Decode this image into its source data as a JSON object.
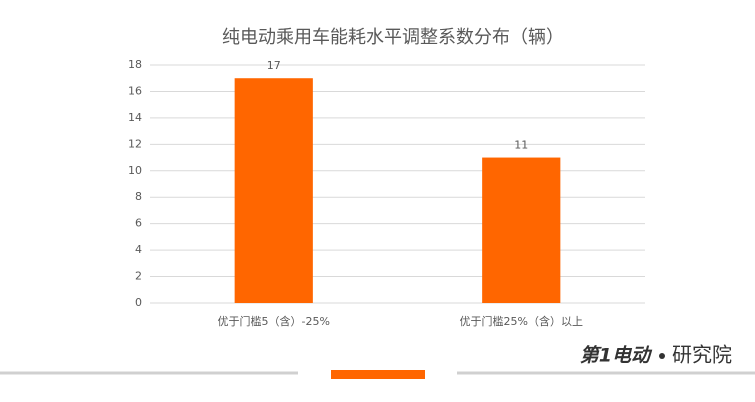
{
  "chart_data": {
    "type": "bar",
    "title": "纯电动乘用车能耗水平调整系数分布（辆）",
    "categories": [
      "优于门槛5（含）-25%",
      "优于门槛25%（含）以上"
    ],
    "values": [
      17,
      11
    ],
    "color": "#ff6600",
    "ylim": [
      0,
      18
    ],
    "yticks": [
      0,
      2,
      4,
      6,
      8,
      10,
      12,
      14,
      16,
      18
    ],
    "grid": true
  },
  "footer": {
    "logo": "第1电动",
    "brand": "研究院"
  }
}
